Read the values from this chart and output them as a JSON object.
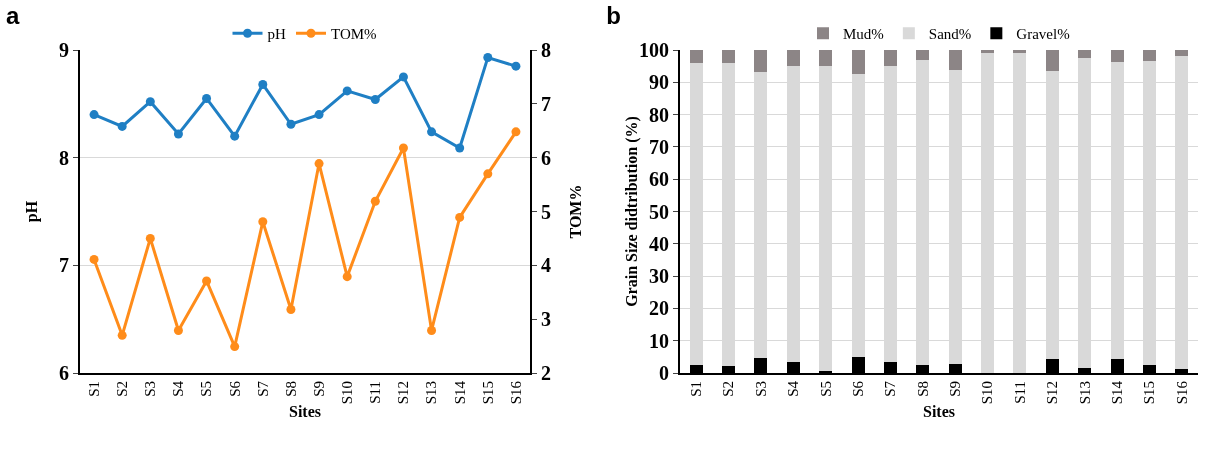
{
  "chart_data": [
    {
      "type": "line",
      "title": "a",
      "xlabel": "Sites",
      "ylabel": "pH",
      "y2label": "TOM%",
      "categories": [
        "S1",
        "S2",
        "S3",
        "S4",
        "S5",
        "S6",
        "S7",
        "S8",
        "S9",
        "S10",
        "S11",
        "S12",
        "S13",
        "S14",
        "S15",
        "S16"
      ],
      "series": [
        {
          "name": "pH",
          "color": "#1f7fc4",
          "values": [
            8.4,
            8.29,
            8.52,
            8.22,
            8.55,
            8.2,
            8.68,
            8.31,
            8.4,
            8.62,
            8.54,
            8.75,
            8.24,
            8.09,
            8.93,
            8.85
          ]
        },
        {
          "name": "TOM%",
          "color": "#ff8c1a",
          "axis": "y2",
          "values": [
            4.11,
            2.7,
            4.5,
            2.79,
            3.71,
            2.49,
            4.81,
            3.18,
            5.89,
            3.79,
            5.19,
            6.18,
            2.79,
            4.89,
            5.7,
            6.48
          ]
        }
      ],
      "ylim": [
        6,
        9
      ],
      "yticks": [
        6,
        7,
        8,
        9
      ],
      "y2lim": [
        2,
        8
      ],
      "y2ticks": [
        2,
        3,
        4,
        5,
        6,
        7,
        8
      ],
      "grid": "y",
      "legend": "top",
      "marker": "circle",
      "line_style": "solid"
    },
    {
      "type": "bar",
      "stacked": true,
      "title": "b",
      "xlabel": "Sites",
      "ylabel": "Grain Size didtribution (%)",
      "categories": [
        "S1",
        "S2",
        "S3",
        "S4",
        "S5",
        "S6",
        "S7",
        "S8",
        "S9",
        "S10",
        "S11",
        "S12",
        "S13",
        "S14",
        "S15",
        "S16"
      ],
      "series": [
        {
          "name": "Gravel%",
          "color": "#000000",
          "values": [
            2.4,
            2.1,
            4.6,
            3.5,
            0.7,
            4.9,
            3.5,
            2.4,
            2.7,
            0.1,
            0.1,
            4.2,
            1.4,
            4.2,
            2.4,
            1.1
          ]
        },
        {
          "name": "Sand%",
          "color": "#d9d9d9",
          "values": [
            93.6,
            93.9,
            88.7,
            91.5,
            94.3,
            87.8,
            91.5,
            94.6,
            91.1,
            98.9,
            98.9,
            89.3,
            96.2,
            92.1,
            94.2,
            97.1
          ]
        },
        {
          "name": "Mud%",
          "color": "#8c8586",
          "values": [
            4.0,
            4.0,
            6.7,
            5.0,
            5.0,
            7.3,
            5.0,
            3.0,
            6.2,
            1.0,
            1.0,
            6.5,
            2.4,
            3.7,
            3.4,
            1.8
          ]
        }
      ],
      "ylim": [
        0,
        100
      ],
      "yticks": [
        0,
        10,
        20,
        30,
        40,
        50,
        60,
        70,
        80,
        90,
        100
      ],
      "grid": "y",
      "legend": "top"
    }
  ]
}
